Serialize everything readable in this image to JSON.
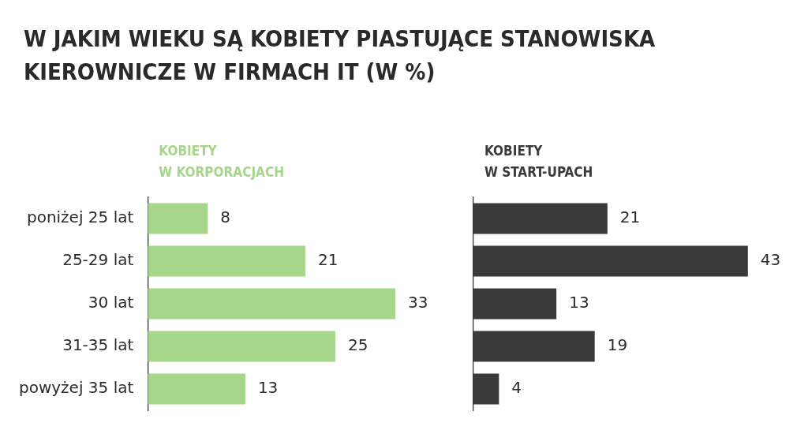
{
  "chart_data": [
    {
      "type": "bar",
      "orientation": "horizontal",
      "title": "W JAKIM WIEKU SĄ KOBIETY PIASTUJĄCE STANOWISKA KIEROWNICZE W FIRMACH IT (W %)",
      "categories": [
        "poniżej 25 lat",
        "25-29 lat",
        "30 lat",
        "31-35 lat",
        "powyżej 35 lat"
      ],
      "series": [
        {
          "name": "KOBIETY\nW KORPORACJACH",
          "color": "#a6d68a",
          "values": [
            8,
            21,
            33,
            25,
            13
          ]
        }
      ],
      "data_labels": true,
      "legend": "top left",
      "grid": false,
      "tick_labels": "y"
    },
    {
      "type": "bar",
      "orientation": "horizontal",
      "categories": [
        null,
        null,
        null,
        null,
        null
      ],
      "series": [
        {
          "name": "KOBIETY\nW START-UPACH",
          "color": "#3a3a3a",
          "values": [
            21,
            43,
            13,
            19,
            4
          ]
        }
      ],
      "data_labels": true,
      "legend": "top left",
      "grid": false,
      "tick_labels": false
    }
  ]
}
